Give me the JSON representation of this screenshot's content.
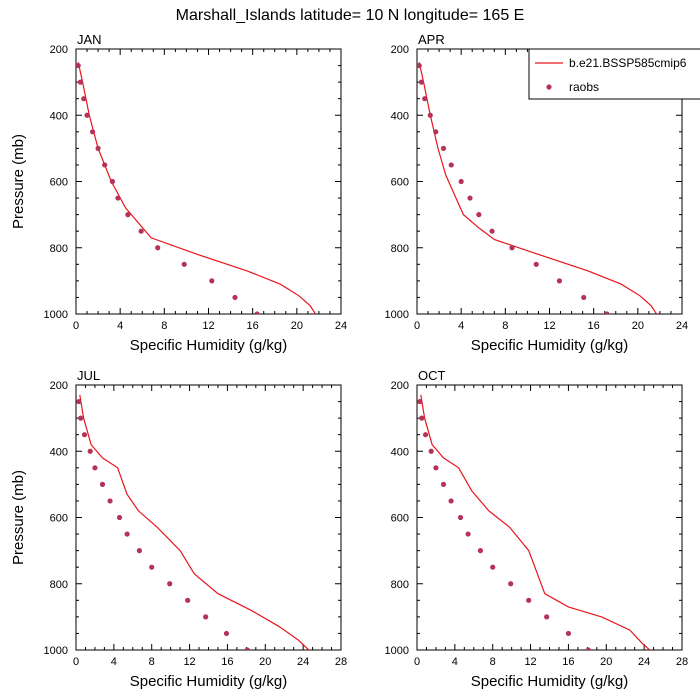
{
  "figure": {
    "title": "Marshall_Islands  latitude= 10 N longitude= 165 E"
  },
  "legend": {
    "model_label": "b.e21.BSSP585cmip6",
    "obs_label": "raobs"
  },
  "colors": {
    "model": "#e8161c",
    "obs": "#b5335a",
    "axis": "#000000"
  },
  "chart_data": [
    {
      "type": "line",
      "panel_label": "JAN",
      "xlabel": "Specific Humidity (g/kg)",
      "ylabel": "Pressure (mb)",
      "xlim": [
        0,
        24
      ],
      "ylim": [
        1000,
        200
      ],
      "xticks": [
        0,
        4,
        8,
        12,
        16,
        20,
        24
      ],
      "yticks": [
        200,
        400,
        600,
        800,
        1000
      ],
      "series": [
        {
          "name": "b.e21.BSSP585cmip6",
          "style": "line",
          "x": [
            0.2,
            0.6,
            1.2,
            2.0,
            3.2,
            4.5,
            6.8,
            11.0,
            15.5,
            18.5,
            20.2,
            21.2,
            21.8
          ],
          "y": [
            240,
            300,
            400,
            500,
            600,
            680,
            770,
            820,
            870,
            910,
            945,
            975,
            1005
          ]
        },
        {
          "name": "raobs",
          "style": "markers",
          "x": [
            0.2,
            0.4,
            0.7,
            1.0,
            1.5,
            2.0,
            2.6,
            3.3,
            3.8,
            4.7,
            5.9,
            7.4,
            9.8,
            12.3,
            14.4,
            16.4
          ],
          "y": [
            250,
            300,
            350,
            400,
            450,
            500,
            550,
            600,
            650,
            700,
            750,
            800,
            850,
            900,
            950,
            1000
          ]
        }
      ]
    },
    {
      "type": "line",
      "panel_label": "APR",
      "xlabel": "Specific Humidity (g/kg)",
      "ylabel": "",
      "xlim": [
        0,
        24
      ],
      "ylim": [
        1000,
        200
      ],
      "xticks": [
        0,
        4,
        8,
        12,
        16,
        20,
        24
      ],
      "yticks": [
        200,
        400,
        600,
        800,
        1000
      ],
      "series": [
        {
          "name": "b.e21.BSSP585cmip6",
          "style": "line",
          "x": [
            0.2,
            0.6,
            1.2,
            1.9,
            2.6,
            3.4,
            4.2,
            5.6,
            7.0,
            11.0,
            15.5,
            18.5,
            20.2,
            21.2,
            21.8
          ],
          "y": [
            240,
            300,
            400,
            500,
            580,
            640,
            700,
            740,
            775,
            820,
            870,
            910,
            945,
            975,
            1005
          ]
        },
        {
          "name": "raobs",
          "style": "markers",
          "x": [
            0.2,
            0.4,
            0.7,
            1.2,
            1.7,
            2.4,
            3.1,
            4.0,
            4.8,
            5.6,
            6.8,
            8.6,
            10.8,
            12.9,
            15.1,
            17.2
          ],
          "y": [
            250,
            300,
            350,
            400,
            450,
            500,
            550,
            600,
            650,
            700,
            750,
            800,
            850,
            900,
            950,
            1000
          ]
        }
      ]
    },
    {
      "type": "line",
      "panel_label": "JUL",
      "xlabel": "Specific Humidity (g/kg)",
      "ylabel": "Pressure (mb)",
      "xlim": [
        0,
        28
      ],
      "ylim": [
        1000,
        200
      ],
      "xticks": [
        0,
        4,
        8,
        12,
        16,
        20,
        24,
        28
      ],
      "yticks": [
        200,
        400,
        600,
        800,
        1000
      ],
      "series": [
        {
          "name": "b.e21.BSSP585cmip6",
          "style": "line",
          "x": [
            0.4,
            0.8,
            1.6,
            2.8,
            4.4,
            5.4,
            6.6,
            8.6,
            11.0,
            12.5,
            15.0,
            18.5,
            21.5,
            23.5,
            24.8
          ],
          "y": [
            230,
            300,
            380,
            420,
            450,
            530,
            580,
            630,
            700,
            770,
            830,
            880,
            930,
            970,
            1005
          ]
        },
        {
          "name": "raobs",
          "style": "markers",
          "x": [
            0.3,
            0.5,
            0.9,
            1.5,
            2.0,
            2.8,
            3.6,
            4.6,
            5.4,
            6.7,
            8.0,
            9.9,
            11.8,
            13.7,
            15.9,
            18.1
          ],
          "y": [
            250,
            300,
            350,
            400,
            450,
            500,
            550,
            600,
            650,
            700,
            750,
            800,
            850,
            900,
            950,
            1000
          ]
        }
      ]
    },
    {
      "type": "line",
      "panel_label": "OCT",
      "xlabel": "Specific Humidity (g/kg)",
      "ylabel": "",
      "xlim": [
        0,
        28
      ],
      "ylim": [
        1000,
        200
      ],
      "xticks": [
        0,
        4,
        8,
        12,
        16,
        20,
        24,
        28
      ],
      "yticks": [
        200,
        400,
        600,
        800,
        1000
      ],
      "series": [
        {
          "name": "b.e21.BSSP585cmip6",
          "style": "line",
          "x": [
            0.4,
            0.8,
            1.6,
            2.8,
            4.4,
            5.8,
            7.6,
            9.8,
            11.8,
            13.5,
            16.0,
            19.5,
            22.5,
            23.8,
            24.8
          ],
          "y": [
            230,
            300,
            380,
            420,
            450,
            520,
            580,
            630,
            700,
            830,
            870,
            900,
            940,
            980,
            1005
          ]
        },
        {
          "name": "raobs",
          "style": "markers",
          "x": [
            0.3,
            0.5,
            0.9,
            1.5,
            2.0,
            2.8,
            3.6,
            4.6,
            5.4,
            6.7,
            8.0,
            9.9,
            11.8,
            13.7,
            16.0,
            18.1
          ],
          "y": [
            250,
            300,
            350,
            400,
            450,
            500,
            550,
            600,
            650,
            700,
            750,
            800,
            850,
            900,
            950,
            1000
          ]
        }
      ]
    }
  ]
}
